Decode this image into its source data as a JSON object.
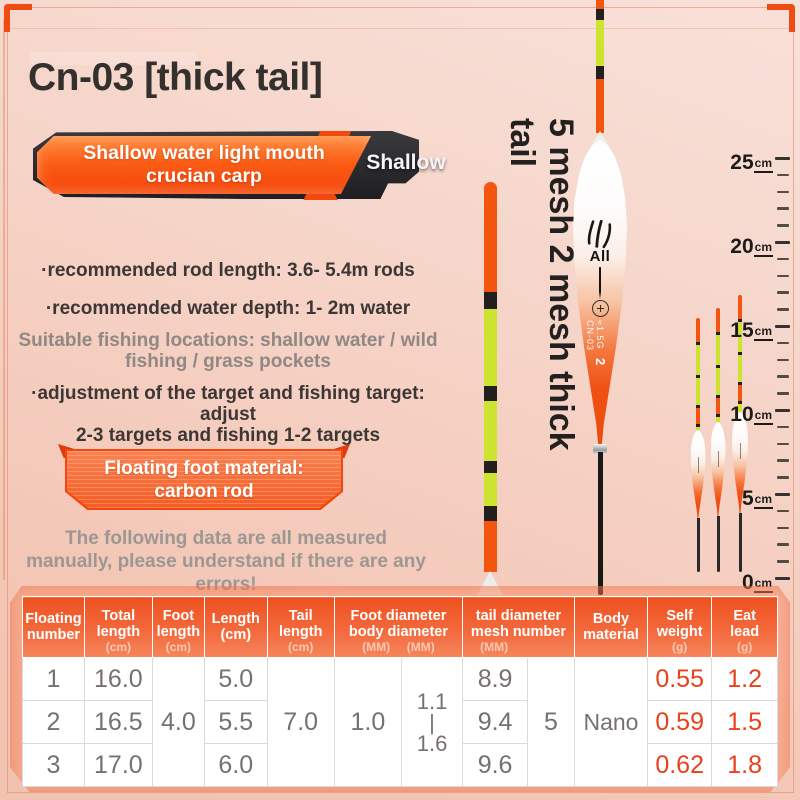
{
  "page": {
    "title": "Cn-03 [thick tail]",
    "badge": {
      "line1": "Shallow water light mouth",
      "line2": "crucian carp",
      "tag": "Shallow"
    },
    "bullets": [
      {
        "line1": "·recommended rod length: 3.6- 5.4m rods",
        "line2": ""
      },
      {
        "line1": "·recommended water depth: 1- 2m water",
        "line2": ""
      },
      {
        "line1": "Suitable fishing locations: shallow water / wild",
        "line2": "fishing / grass pockets"
      },
      {
        "line1": "·adjustment of the target and fishing target: adjust",
        "line2": "2-3 targets and fishing 1-2 targets"
      }
    ],
    "material_badge": {
      "line1": "Floating foot material:",
      "line2": "carbon rod"
    },
    "disclaimer": {
      "line1": "The following data are all measured",
      "line2": "manually, please understand if there are any",
      "line3": "errors!"
    },
    "vertical_caption": "5 mesh 2 mesh thick tail",
    "float_label": {
      "brand": "All",
      "spec1": "≈1.5G",
      "spec2": "CN-03",
      "size": "2"
    }
  },
  "ruler": {
    "unit": "cm",
    "major_values": [
      "0",
      "5",
      "10",
      "15",
      "20",
      "25"
    ]
  },
  "table": {
    "headers": [
      {
        "line1": "Floating",
        "line2": "number",
        "sub": ""
      },
      {
        "line1": "Total",
        "line2": "length",
        "sub": "(cm)"
      },
      {
        "line1": "Foot",
        "line2": "length",
        "sub": "(cm)"
      },
      {
        "line1": "Length",
        "line2": "(cm)",
        "sub": ""
      },
      {
        "line1": "Tail",
        "line2": "length",
        "sub": "(cm)"
      },
      {
        "line1": "Foot diameter",
        "line2": "body diameter",
        "sub": "(MM)     (MM)"
      },
      {
        "line1": "tail diameter",
        "line2": "mesh number",
        "sub": "(MM)"
      },
      {
        "line1": "Body",
        "line2": "material",
        "sub": ""
      },
      {
        "line1": "Self",
        "line2": "weight",
        "sub": "(g)"
      },
      {
        "line1": "Eat",
        "line2": "lead",
        "sub": "(g)"
      }
    ],
    "merged": {
      "foot_length": "4.0",
      "tail_length": "7.0",
      "foot_diameter": "1.0",
      "body_diameter_a": "1.1",
      "body_diameter_sep": "|",
      "body_diameter_b": "1.6",
      "mesh_number": "5",
      "body_material": "Nano"
    },
    "rows": [
      {
        "floating_number": "1",
        "total_length": "16.0",
        "length": "5.0",
        "tail_diameter": "8.9",
        "self_weight": "0.55",
        "eat_lead": "1.2"
      },
      {
        "floating_number": "2",
        "total_length": "16.5",
        "length": "5.5",
        "tail_diameter": "9.4",
        "self_weight": "0.59",
        "eat_lead": "1.5"
      },
      {
        "floating_number": "3",
        "total_length": "17.0",
        "length": "6.0",
        "tail_diameter": "9.6",
        "self_weight": "0.62",
        "eat_lead": "1.8"
      }
    ]
  },
  "colors": {
    "accent_orange": "#f2480c",
    "float_orange": "#f3540e",
    "chartreuse": "#cde32f",
    "band_black": "#221f1c",
    "table_red": "#e8401a",
    "header_orange": "#ee5120"
  }
}
